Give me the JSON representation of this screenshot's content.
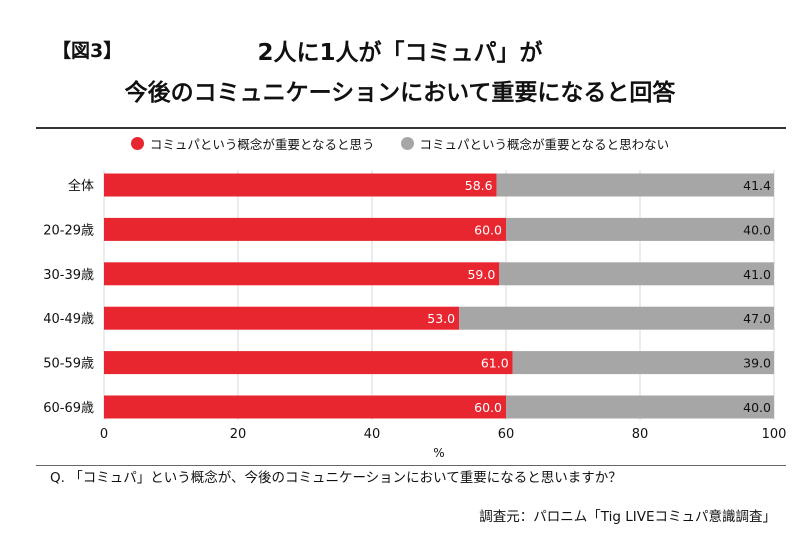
{
  "figure_label": "【図3】",
  "title_line1": "2人に1人が「コミュパ」が",
  "title_line2": "今後のコミュニケーションにおいて重要になると回答",
  "question": "Q. 「コミュパ」という概念が、今後のコミュニケーションにおいて重要になると思いますか？",
  "source": "調査元：パロニム「Tig LIVEコミュパ意識調査」",
  "colors": {
    "agree": "#e8262f",
    "disagree": "#a6a6a6",
    "grid": "#d9d9d9"
  },
  "chart_data": {
    "type": "bar",
    "orientation": "horizontal",
    "stacked": true,
    "categories": [
      "全体",
      "20-29歳",
      "30-39歳",
      "40-49歳",
      "50-59歳",
      "60-69歳"
    ],
    "series": [
      {
        "name": "コミュパという概念が重要となると思う",
        "values": [
          58.6,
          60.0,
          59.0,
          53.0,
          61.0,
          60.0
        ]
      },
      {
        "name": "コミュパという概念が重要となると思わない",
        "values": [
          41.4,
          40.0,
          41.0,
          47.0,
          39.0,
          40.0
        ]
      }
    ],
    "value_labels": [
      [
        "58.6",
        "60.0",
        "59.0",
        "53.0",
        "61.0",
        "60.0"
      ],
      [
        "41.4",
        "40.0",
        "41.0",
        "47.0",
        "39.0",
        "40.0"
      ]
    ],
    "xlabel": "%",
    "xlim": [
      0,
      100
    ],
    "xticks": [
      0,
      20,
      40,
      60,
      80,
      100
    ],
    "legend_position": "top",
    "grid": true
  }
}
